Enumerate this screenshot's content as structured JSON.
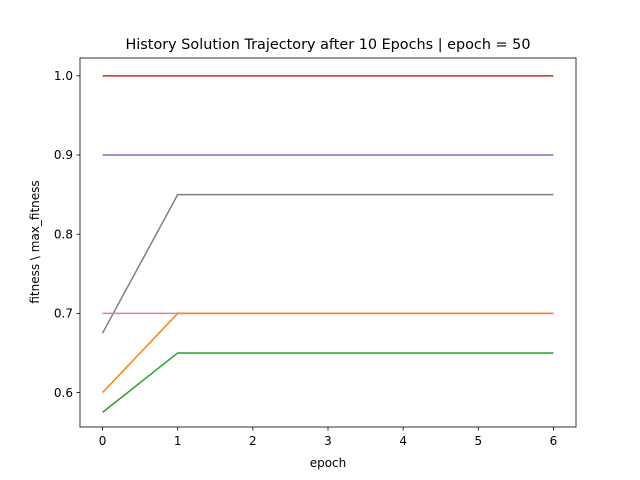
{
  "chart_data": {
    "type": "line",
    "title": "History Solution Trajectory after 10 Epochs | epoch = 50",
    "xlabel": "epoch",
    "ylabel": "fitness \\ max_fitness",
    "xlim": [
      -0.3,
      6.3
    ],
    "ylim": [
      0.5565,
      1.0225
    ],
    "x_ticks": [
      0,
      1,
      2,
      3,
      4,
      5,
      6
    ],
    "x_tick_labels": [
      "0",
      "1",
      "2",
      "3",
      "4",
      "5",
      "6"
    ],
    "y_ticks": [
      0.6,
      0.7,
      0.8,
      0.9,
      1.0
    ],
    "y_tick_labels": [
      "0.6",
      "0.7",
      "0.8",
      "0.9",
      "1.0"
    ],
    "grid": false,
    "legend": "none",
    "series": [
      {
        "color": "#d62728",
        "x": [
          0,
          1,
          2,
          3,
          4,
          5,
          6
        ],
        "y": [
          1.0,
          1.0,
          1.0,
          1.0,
          1.0,
          1.0,
          1.0
        ]
      },
      {
        "color": "#9467bd",
        "x": [
          0,
          1,
          2,
          3,
          4,
          5,
          6
        ],
        "y": [
          0.9,
          0.9,
          0.9,
          0.9,
          0.9,
          0.9,
          0.9
        ]
      },
      {
        "color": "#7f7f7f",
        "x": [
          0,
          1,
          2,
          3,
          4,
          5,
          6
        ],
        "y": [
          0.675,
          0.85,
          0.85,
          0.85,
          0.85,
          0.85,
          0.85
        ]
      },
      {
        "color": "#e377c2",
        "x": [
          0,
          1,
          2,
          3,
          4,
          5,
          6
        ],
        "y": [
          0.7,
          0.7,
          0.7,
          0.7,
          0.7,
          0.7,
          0.7
        ]
      },
      {
        "color": "#ff7f0e",
        "x": [
          0,
          1,
          2,
          3,
          4,
          5,
          6
        ],
        "y": [
          0.6,
          0.7,
          0.7,
          0.7,
          0.7,
          0.7,
          0.7
        ]
      },
      {
        "color": "#2ca02c",
        "x": [
          0,
          1,
          2,
          3,
          4,
          5,
          6
        ],
        "y": [
          0.575,
          0.65,
          0.65,
          0.65,
          0.65,
          0.65,
          0.65
        ]
      }
    ]
  }
}
